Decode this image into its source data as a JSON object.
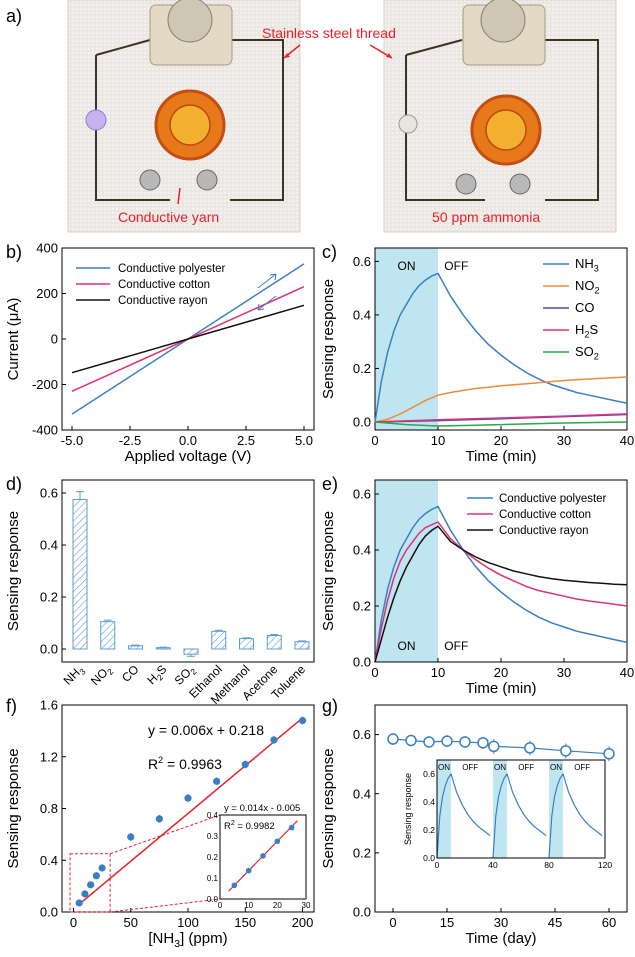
{
  "panel_labels": {
    "a": "a)",
    "b": "b)",
    "c": "c)",
    "d": "d)",
    "e": "e)",
    "f": "f)",
    "g": "g)"
  },
  "photos": {
    "stainless_label": "Stainless steel thread",
    "yarn_label": "Conductive yarn",
    "ammonia_label": "50 ppm ammonia",
    "label_color": "#e8202a"
  },
  "colors": {
    "blue": "#3a7fc4",
    "magenta": "#e0307a",
    "black": "#111111",
    "orange": "#f08a3c",
    "indigo": "#4a4aa8",
    "green": "#2aa84a",
    "red": "#e8202a",
    "shade": "#bfe6f0",
    "hatch": "#5b9bd5"
  },
  "chart_data": [
    {
      "panel": "b",
      "type": "line",
      "xlabel": "Applied voltage (V)",
      "ylabel": "Current (μA)",
      "xlim": [
        -5,
        5
      ],
      "ylim": [
        -400,
        400
      ],
      "xticks": [
        "-5.0",
        "-2.5",
        "0.0",
        "2.5",
        "5.0"
      ],
      "yticks": [
        "-400",
        "-200",
        "0",
        "200",
        "400"
      ],
      "legend_position": "top-left",
      "series": [
        {
          "name": "Conductive polyester",
          "color": "blue",
          "x": [
            -5,
            5
          ],
          "y": [
            -330,
            330
          ]
        },
        {
          "name": "Conductive cotton",
          "color": "magenta",
          "x": [
            -5,
            5
          ],
          "y": [
            -230,
            230
          ]
        },
        {
          "name": "Conductive rayon",
          "color": "black",
          "x": [
            -5,
            5
          ],
          "y": [
            -148,
            148
          ]
        }
      ]
    },
    {
      "panel": "c",
      "type": "line",
      "xlabel": "Time (min)",
      "ylabel": "Sensing response",
      "xlim": [
        0,
        40
      ],
      "ylim": [
        -0.03,
        0.65
      ],
      "xticks": [
        "0",
        "10",
        "20",
        "30",
        "40"
      ],
      "yticks": [
        "0.0",
        "0.2",
        "0.4",
        "0.6"
      ],
      "on_label": "ON",
      "off_label": "OFF",
      "on_range": [
        0,
        10
      ],
      "legend_position": "right",
      "series": [
        {
          "name": "NH3",
          "color": "blue",
          "x": [
            0,
            1,
            2,
            3,
            4,
            5,
            6,
            7,
            8,
            9,
            10,
            12,
            14,
            16,
            18,
            20,
            22,
            24,
            26,
            28,
            30,
            32,
            34,
            36,
            38,
            40
          ],
          "y": [
            0,
            0.15,
            0.26,
            0.34,
            0.4,
            0.44,
            0.48,
            0.51,
            0.53,
            0.545,
            0.555,
            0.47,
            0.4,
            0.34,
            0.29,
            0.25,
            0.215,
            0.185,
            0.16,
            0.14,
            0.125,
            0.11,
            0.1,
            0.09,
            0.08,
            0.07
          ]
        },
        {
          "name": "NO2",
          "color": "orange",
          "x": [
            0,
            2,
            4,
            6,
            8,
            10,
            12,
            14,
            16,
            18,
            20,
            25,
            30,
            35,
            40
          ],
          "y": [
            0,
            0.01,
            0.03,
            0.055,
            0.08,
            0.1,
            0.11,
            0.118,
            0.125,
            0.13,
            0.135,
            0.145,
            0.155,
            0.162,
            0.168
          ]
        },
        {
          "name": "CO",
          "color": "indigo",
          "x": [
            0,
            10,
            20,
            30,
            40
          ],
          "y": [
            0,
            0.005,
            0.012,
            0.02,
            0.028
          ]
        },
        {
          "name": "H2S",
          "color": "magenta",
          "x": [
            0,
            10,
            20,
            30,
            40
          ],
          "y": [
            0,
            0.008,
            0.015,
            0.022,
            0.03
          ]
        },
        {
          "name": "SO2",
          "color": "green",
          "x": [
            0,
            5,
            10,
            15,
            20,
            25,
            30,
            35,
            40
          ],
          "y": [
            0,
            -0.01,
            -0.015,
            -0.013,
            -0.01,
            -0.007,
            -0.004,
            -0.002,
            0
          ]
        }
      ]
    },
    {
      "panel": "d",
      "type": "bar",
      "ylabel": "Sensing response",
      "ylim": [
        -0.05,
        0.65
      ],
      "yticks": [
        "0.0",
        "0.2",
        "0.4",
        "0.6"
      ],
      "categories": [
        "NH3",
        "NO2",
        "CO",
        "H2S",
        "SO2",
        "Ethanol",
        "Methanol",
        "Acetone",
        "Toluene"
      ],
      "values": [
        0.575,
        0.105,
        0.012,
        0.005,
        -0.02,
        0.068,
        0.04,
        0.052,
        0.028
      ],
      "errors": [
        0.03,
        0.006,
        0.003,
        0.002,
        0.008,
        0.004,
        0.003,
        0.004,
        0.003
      ]
    },
    {
      "panel": "e",
      "type": "line",
      "xlabel": "Time (min)",
      "ylabel": "Sensing response",
      "xlim": [
        0,
        40
      ],
      "ylim": [
        0,
        0.65
      ],
      "xticks": [
        "0",
        "10",
        "20",
        "30",
        "40"
      ],
      "yticks": [
        "0.0",
        "0.2",
        "0.4",
        "0.6"
      ],
      "on_label": "ON",
      "off_label": "OFF",
      "on_range": [
        0,
        10
      ],
      "legend_position": "top-right",
      "series": [
        {
          "name": "Conductive polyester",
          "color": "blue",
          "x": [
            0,
            1,
            2,
            3,
            4,
            5,
            6,
            7,
            8,
            9,
            10,
            12,
            14,
            16,
            18,
            20,
            22,
            24,
            26,
            28,
            30,
            32,
            34,
            36,
            38,
            40
          ],
          "y": [
            0,
            0.15,
            0.26,
            0.34,
            0.4,
            0.44,
            0.48,
            0.51,
            0.53,
            0.545,
            0.555,
            0.47,
            0.4,
            0.34,
            0.29,
            0.25,
            0.215,
            0.185,
            0.16,
            0.14,
            0.125,
            0.11,
            0.1,
            0.09,
            0.08,
            0.07
          ]
        },
        {
          "name": "Conductive cotton",
          "color": "magenta",
          "x": [
            0,
            1,
            2,
            3,
            4,
            5,
            6,
            7,
            8,
            9,
            10,
            12,
            14,
            16,
            18,
            20,
            22,
            24,
            26,
            28,
            30,
            32,
            34,
            36,
            38,
            40
          ],
          "y": [
            0,
            0.12,
            0.22,
            0.3,
            0.36,
            0.4,
            0.43,
            0.46,
            0.48,
            0.49,
            0.5,
            0.44,
            0.4,
            0.365,
            0.335,
            0.31,
            0.29,
            0.27,
            0.255,
            0.245,
            0.235,
            0.225,
            0.218,
            0.212,
            0.206,
            0.2
          ]
        },
        {
          "name": "Conductive rayon",
          "color": "black",
          "x": [
            0,
            1,
            2,
            3,
            4,
            5,
            6,
            7,
            8,
            9,
            10,
            12,
            14,
            16,
            18,
            20,
            22,
            24,
            26,
            28,
            30,
            32,
            34,
            36,
            38,
            40
          ],
          "y": [
            0,
            0.08,
            0.16,
            0.23,
            0.29,
            0.34,
            0.38,
            0.42,
            0.45,
            0.47,
            0.485,
            0.43,
            0.4,
            0.375,
            0.355,
            0.34,
            0.325,
            0.315,
            0.305,
            0.298,
            0.292,
            0.288,
            0.284,
            0.281,
            0.278,
            0.276
          ]
        }
      ]
    },
    {
      "panel": "f",
      "type": "scatter",
      "xlabel": "[NH3] (ppm)",
      "ylabel": "Sensing response",
      "xlim": [
        -10,
        210
      ],
      "ylim": [
        0,
        1.6
      ],
      "xticks": [
        "0",
        "50",
        "100",
        "150",
        "200"
      ],
      "yticks": [
        "0.0",
        "0.4",
        "0.8",
        "1.2",
        "1.6"
      ],
      "fit_equation": "y = 0.006x + 0.218",
      "r2_prefix": "R",
      "r2_value": "2",
      "r2_text": " = 0.9963",
      "x": [
        5,
        10,
        15,
        20,
        25,
        50,
        75,
        100,
        125,
        150,
        175,
        200
      ],
      "y": [
        0.07,
        0.14,
        0.21,
        0.28,
        0.34,
        0.58,
        0.72,
        0.88,
        1.01,
        1.14,
        1.33,
        1.48
      ],
      "errors": [
        0.015,
        0.015,
        0.02,
        0.02,
        0.02,
        0.03,
        0.03,
        0.03,
        0.03,
        0.03,
        0.03,
        0.03
      ],
      "fit_line": [
        [
          5,
          0.06
        ],
        [
          200,
          1.5
        ]
      ],
      "inset": {
        "xlim": [
          0,
          30
        ],
        "ylim": [
          0,
          0.4
        ],
        "xticks": [
          "0",
          "10",
          "20",
          "30"
        ],
        "yticks": [
          "0.0",
          "0.1",
          "0.2",
          "0.3",
          "0.4"
        ],
        "fit_equation": "y = 0.014x - 0.005",
        "r2_prefix": "R",
        "r2_value": "2",
        "r2_text": " = 0.9982",
        "x": [
          5,
          10,
          15,
          20,
          25
        ],
        "y": [
          0.065,
          0.135,
          0.205,
          0.275,
          0.34
        ],
        "errors": [
          0.01,
          0.01,
          0.012,
          0.012,
          0.012
        ],
        "fit_line": [
          [
            3,
            0.037
          ],
          [
            27,
            0.373
          ]
        ]
      }
    },
    {
      "panel": "g",
      "type": "line",
      "xlabel": "Time (day)",
      "ylabel": "Sensing response",
      "xlim": [
        -5,
        65
      ],
      "ylim": [
        0,
        0.7
      ],
      "xticks": [
        "0",
        "15",
        "30",
        "45",
        "60"
      ],
      "yticks": [
        "0.0",
        "0.2",
        "0.4",
        "0.6"
      ],
      "x": [
        0,
        5,
        10,
        15,
        20,
        25,
        28,
        38,
        48,
        60
      ],
      "y": [
        0.585,
        0.58,
        0.575,
        0.578,
        0.575,
        0.572,
        0.56,
        0.555,
        0.545,
        0.535
      ],
      "errors": [
        0.02,
        0.02,
        0.02,
        0.02,
        0.02,
        0.02,
        0.025,
        0.025,
        0.025,
        0.025
      ],
      "inset": {
        "ylabel": "Sensing response",
        "xlim": [
          0,
          120
        ],
        "ylim": [
          0,
          0.7
        ],
        "xticks": [
          "0",
          "40",
          "80",
          "120"
        ],
        "yticks": [
          "0.0",
          "0.2",
          "0.4",
          "0.6"
        ],
        "on_label": "ON",
        "off_label": "OFF",
        "cycles": [
          0,
          40,
          80
        ],
        "cycle_shape": {
          "x": [
            0,
            2,
            4,
            6,
            8,
            10,
            14,
            18,
            22,
            26,
            30,
            34,
            38
          ],
          "y": [
            0,
            0.3,
            0.44,
            0.52,
            0.57,
            0.6,
            0.47,
            0.38,
            0.31,
            0.26,
            0.22,
            0.19,
            0.16
          ]
        }
      }
    }
  ]
}
